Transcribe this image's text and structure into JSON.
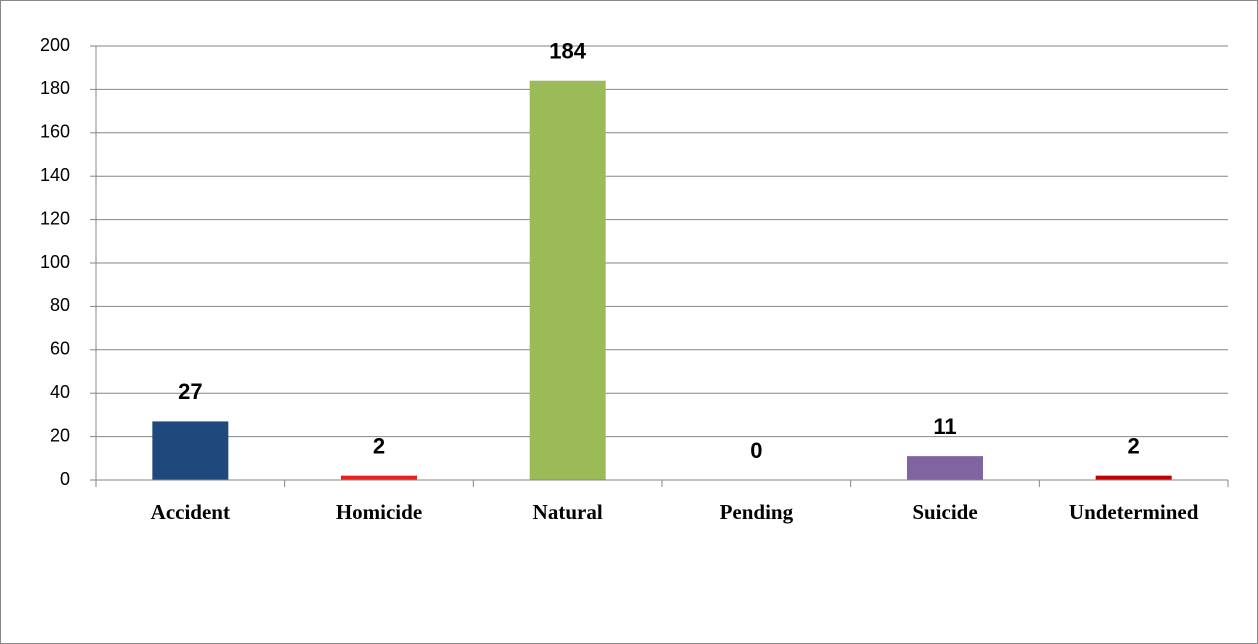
{
  "chart_data": {
    "type": "bar",
    "categories": [
      "Accident",
      "Homicide",
      "Natural",
      "Pending",
      "Suicide",
      "Undetermined"
    ],
    "values": [
      27,
      2,
      184,
      0,
      11,
      2
    ],
    "colors": [
      "#1f497d",
      "#e8201c",
      "#9bbb59",
      "#4f81bd",
      "#8064a2",
      "#c00000"
    ],
    "ylim": [
      0,
      200
    ],
    "yticks": [
      0,
      20,
      40,
      60,
      80,
      100,
      120,
      140,
      160,
      180,
      200
    ],
    "grid": true
  }
}
